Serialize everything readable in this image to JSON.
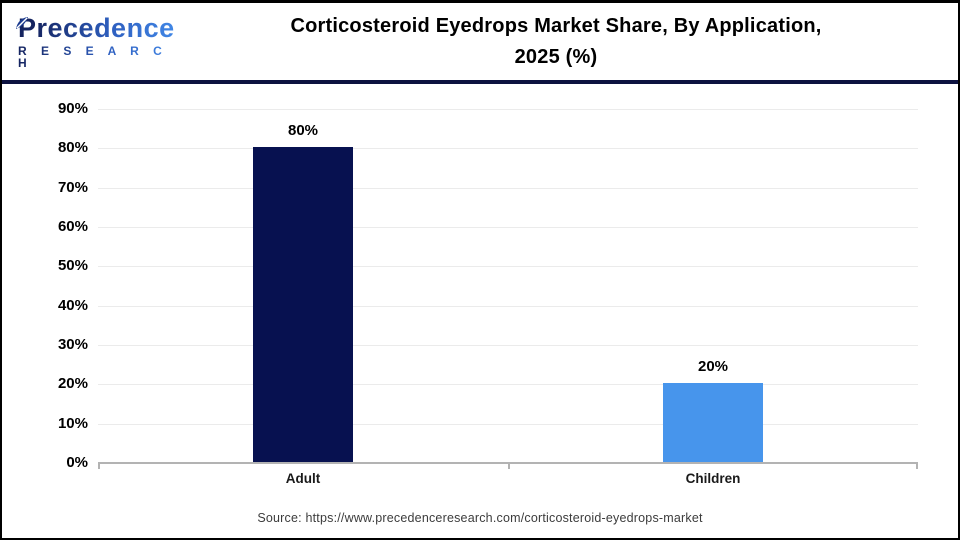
{
  "header": {
    "logo_line1": "Precedence",
    "logo_line2": "R E S E A R C H",
    "title_line1": "Corticosteroid Eyedrops Market Share, By Application,",
    "title_line2": "2025 (%)"
  },
  "chart_data": {
    "type": "bar",
    "title": "Corticosteroid Eyedrops Market Share, By Application, 2025 (%)",
    "categories": [
      "Adult",
      "Children"
    ],
    "values": [
      80,
      20
    ],
    "value_labels": [
      "80%",
      "20%"
    ],
    "bar_colors": [
      "#071150",
      "#4795ec"
    ],
    "xlabel": "",
    "ylabel": "",
    "ylim": [
      0,
      90
    ],
    "ytick_step": 10,
    "yticks": [
      "90%",
      "80%",
      "70%",
      "60%",
      "50%",
      "40%",
      "30%",
      "20%",
      "10%",
      "0%"
    ],
    "grid": "horizontal",
    "legend_position": "none"
  },
  "footer": {
    "source": "Source: https://www.precedenceresearch.com/corticosteroid-eyedrops-market"
  },
  "colors": {
    "adult_bar": "#071150",
    "children_bar": "#4795ec",
    "header_rule": "#0d1240",
    "gridline": "#ebebeb",
    "axis_line": "#b3b3b3",
    "page_border": "#000000"
  }
}
